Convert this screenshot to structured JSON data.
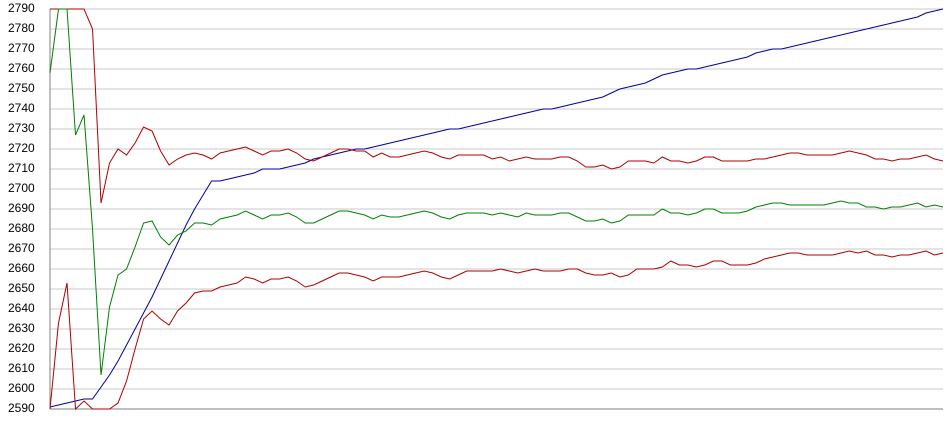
{
  "chart_data": {
    "type": "line",
    "ylim": [
      2590,
      2790
    ],
    "yticks": [
      2590,
      2600,
      2610,
      2620,
      2630,
      2640,
      2650,
      2660,
      2670,
      2680,
      2690,
      2700,
      2710,
      2720,
      2730,
      2740,
      2750,
      2760,
      2770,
      2780,
      2790
    ],
    "grid": true,
    "series": [
      {
        "color": "#0000a0",
        "values": [
          2591,
          2592,
          2593,
          2594,
          2595,
          2595,
          2601,
          2607,
          2614,
          2622,
          2630,
          2638,
          2646,
          2655,
          2664,
          2673,
          2682,
          2690,
          2697,
          2704,
          2704,
          2705,
          2706,
          2707,
          2708,
          2710,
          2710,
          2710,
          2711,
          2712,
          2713,
          2715,
          2716,
          2717,
          2718,
          2719,
          2720,
          2720,
          2721,
          2722,
          2723,
          2724,
          2725,
          2726,
          2727,
          2728,
          2729,
          2730,
          2730,
          2731,
          2732,
          2733,
          2734,
          2735,
          2736,
          2737,
          2738,
          2739,
          2740,
          2740,
          2741,
          2742,
          2743,
          2744,
          2745,
          2746,
          2748,
          2750,
          2751,
          2752,
          2753,
          2755,
          2757,
          2758,
          2759,
          2760,
          2760,
          2761,
          2762,
          2763,
          2764,
          2765,
          2766,
          2768,
          2769,
          2770,
          2770,
          2771,
          2772,
          2773,
          2774,
          2775,
          2776,
          2777,
          2778,
          2779,
          2780,
          2781,
          2782,
          2783,
          2784,
          2785,
          2786,
          2788,
          2789,
          2790
        ]
      },
      {
        "color": "#b00000",
        "values": [
          2790,
          2790,
          2790,
          2790,
          2790,
          2780,
          2693,
          2713,
          2720,
          2717,
          2723,
          2731,
          2729,
          2719,
          2712,
          2715,
          2717,
          2718,
          2717,
          2715,
          2718,
          2719,
          2720,
          2721,
          2719,
          2717,
          2719,
          2719,
          2720,
          2718,
          2715,
          2714,
          2716,
          2718,
          2720,
          2720,
          2719,
          2719,
          2716,
          2718,
          2716,
          2716,
          2717,
          2718,
          2719,
          2718,
          2716,
          2715,
          2717,
          2717,
          2717,
          2717,
          2715,
          2716,
          2714,
          2715,
          2716,
          2715,
          2715,
          2715,
          2716,
          2716,
          2714,
          2711,
          2711,
          2712,
          2710,
          2711,
          2714,
          2714,
          2714,
          2713,
          2716,
          2714,
          2714,
          2713,
          2714,
          2716,
          2716,
          2714,
          2714,
          2714,
          2714,
          2715,
          2715,
          2716,
          2717,
          2718,
          2718,
          2717,
          2717,
          2717,
          2717,
          2718,
          2719,
          2718,
          2717,
          2715,
          2715,
          2714,
          2715,
          2715,
          2716,
          2717,
          2715,
          2714
        ]
      },
      {
        "color": "#008000",
        "values": [
          2758,
          2790,
          2790,
          2727,
          2737,
          2680,
          2607,
          2641,
          2657,
          2660,
          2671,
          2683,
          2684,
          2676,
          2672,
          2677,
          2679,
          2683,
          2683,
          2682,
          2685,
          2686,
          2687,
          2689,
          2687,
          2685,
          2687,
          2687,
          2688,
          2686,
          2683,
          2683,
          2685,
          2687,
          2689,
          2689,
          2688,
          2687,
          2685,
          2687,
          2686,
          2686,
          2687,
          2688,
          2689,
          2688,
          2686,
          2685,
          2687,
          2688,
          2688,
          2688,
          2687,
          2688,
          2687,
          2686,
          2688,
          2687,
          2687,
          2687,
          2688,
          2688,
          2686,
          2684,
          2684,
          2685,
          2683,
          2684,
          2687,
          2687,
          2687,
          2687,
          2690,
          2688,
          2688,
          2687,
          2688,
          2690,
          2690,
          2688,
          2688,
          2688,
          2689,
          2691,
          2692,
          2693,
          2693,
          2692,
          2692,
          2692,
          2692,
          2692,
          2693,
          2694,
          2693,
          2693,
          2691,
          2691,
          2690,
          2691,
          2691,
          2692,
          2693,
          2691,
          2692,
          2691
        ]
      },
      {
        "color": "#b00000",
        "values": [
          2590,
          2633,
          2653,
          2590,
          2594,
          2590,
          2590,
          2590,
          2593,
          2604,
          2620,
          2635,
          2639,
          2635,
          2632,
          2639,
          2643,
          2648,
          2649,
          2649,
          2651,
          2652,
          2653,
          2656,
          2655,
          2653,
          2655,
          2655,
          2656,
          2654,
          2651,
          2652,
          2654,
          2656,
          2658,
          2658,
          2657,
          2656,
          2654,
          2656,
          2656,
          2656,
          2657,
          2658,
          2659,
          2658,
          2656,
          2655,
          2657,
          2659,
          2659,
          2659,
          2659,
          2660,
          2659,
          2658,
          2659,
          2660,
          2659,
          2659,
          2659,
          2660,
          2660,
          2658,
          2657,
          2657,
          2658,
          2656,
          2657,
          2660,
          2660,
          2660,
          2661,
          2664,
          2662,
          2662,
          2661,
          2662,
          2664,
          2664,
          2662,
          2662,
          2662,
          2663,
          2665,
          2666,
          2667,
          2668,
          2668,
          2667,
          2667,
          2667,
          2667,
          2668,
          2669,
          2668,
          2669,
          2667,
          2667,
          2666,
          2667,
          2667,
          2668,
          2669,
          2667,
          2668
        ]
      }
    ]
  }
}
